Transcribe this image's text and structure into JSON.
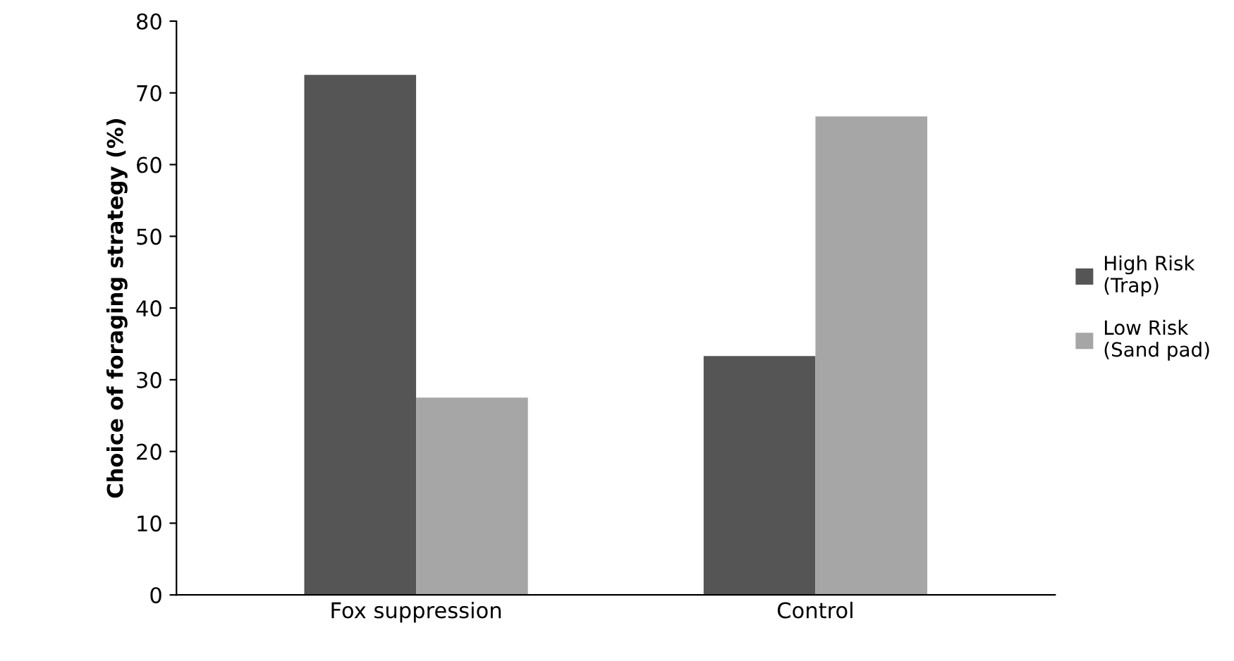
{
  "chart_data": {
    "type": "bar",
    "ylabel": "Choice of foraging strategy (%)",
    "categories": [
      "Fox suppression",
      "Control"
    ],
    "series": [
      {
        "name": "High Risk\n(Trap)",
        "color": "#555555",
        "values": [
          72.5,
          33.3
        ]
      },
      {
        "name": "Low Risk\n(Sand pad)",
        "color": "#a6a6a6",
        "values": [
          27.5,
          66.7
        ]
      }
    ],
    "ylim": [
      0,
      80
    ],
    "yticks": [
      0,
      10,
      20,
      30,
      40,
      50,
      60,
      70,
      80
    ],
    "grid": false,
    "legend": "right"
  }
}
